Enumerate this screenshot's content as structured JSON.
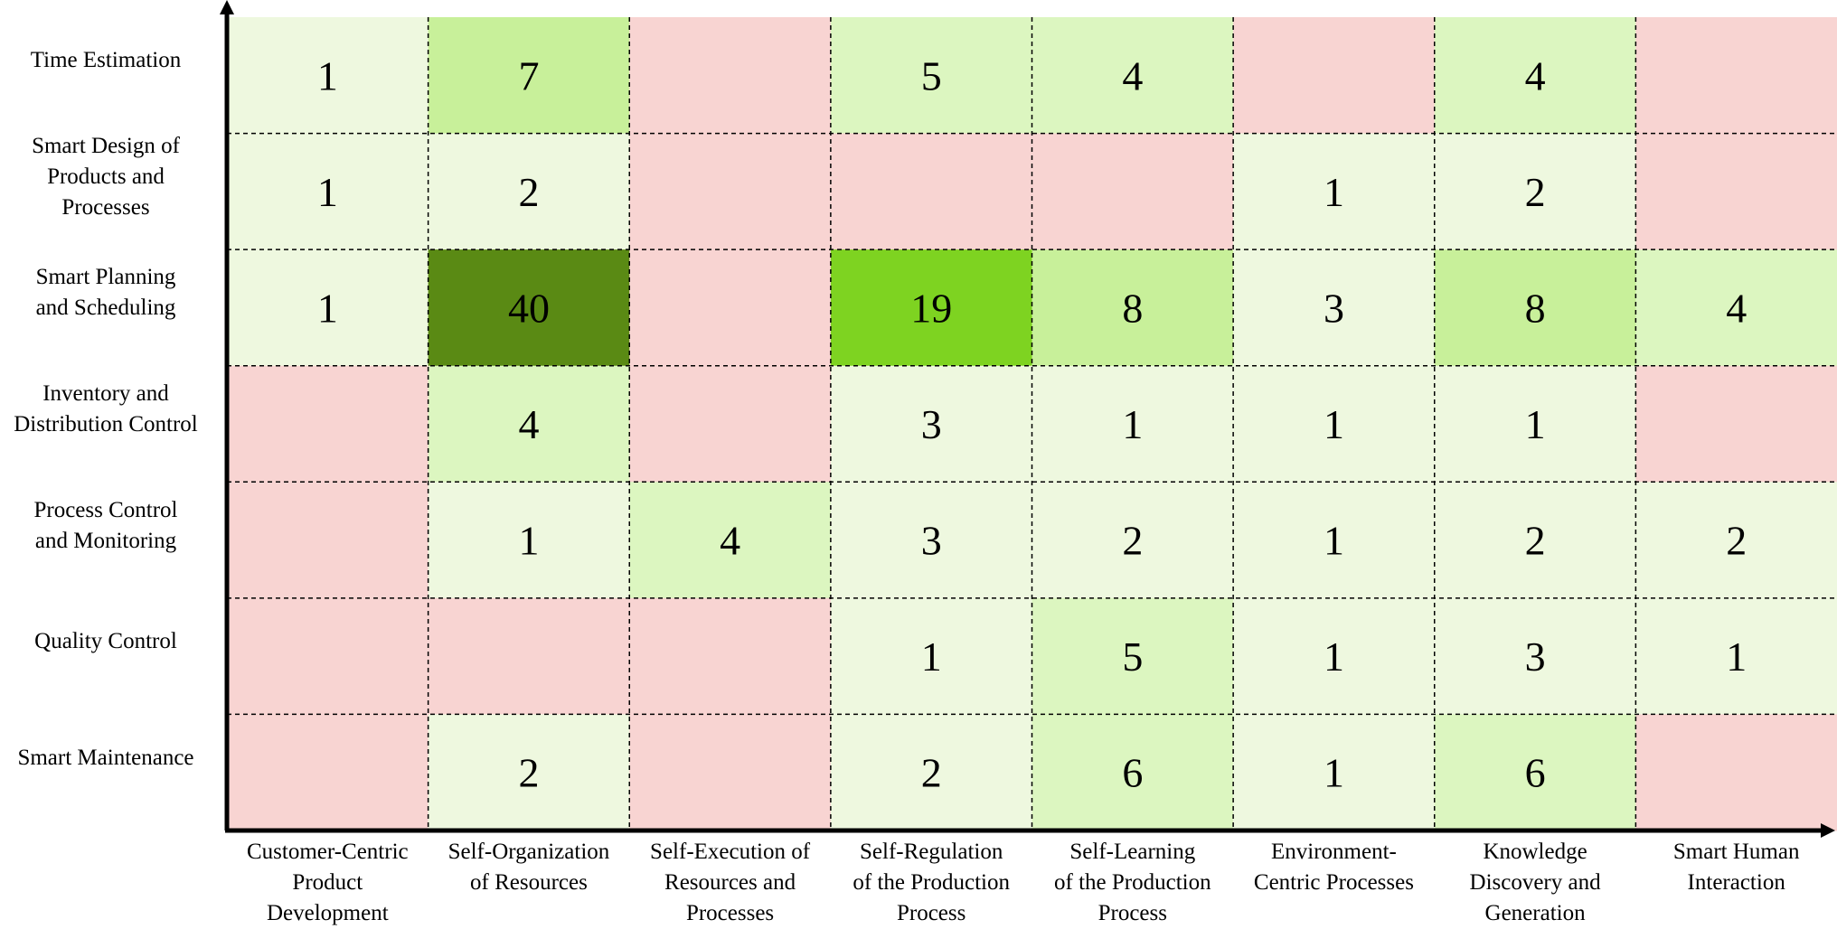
{
  "chart_data": {
    "type": "heatmap",
    "title": "",
    "xlabel": "",
    "ylabel": "",
    "rows": [
      "Time Estimation",
      "Smart Design of Products and Processes",
      "Smart Planning and Scheduling",
      "Inventory and Distribution Control",
      "Process Control and Monitoring",
      "Quality Control",
      "Smart Maintenance"
    ],
    "row_label_lines": [
      [
        "Time Estimation"
      ],
      [
        "Smart Design of",
        "Products and",
        "Processes"
      ],
      [
        "Smart Planning",
        "and Scheduling"
      ],
      [
        "Inventory and",
        "Distribution Control"
      ],
      [
        "Process Control",
        "and Monitoring"
      ],
      [
        "Quality Control"
      ],
      [
        "Smart Maintenance"
      ]
    ],
    "columns": [
      "Customer-Centric Product Development",
      "Self-Organization of Resources",
      "Self-Execution of Resources and Processes",
      "Self-Regulation of the Production Process",
      "Self-Learning of the Production Process",
      "Environment-Centric Processes",
      "Knowledge Discovery and Generation",
      "Smart Human Interaction"
    ],
    "column_label_lines": [
      [
        "Customer-Centric",
        "Product",
        "Development"
      ],
      [
        "Self-Organization",
        "of Resources"
      ],
      [
        "Self-Execution of",
        "Resources and",
        "Processes"
      ],
      [
        "Self-Regulation",
        "of the Production",
        "Process"
      ],
      [
        "Self-Learning",
        "of the Production",
        "Process"
      ],
      [
        "Environment-",
        "Centric Processes"
      ],
      [
        "Knowledge",
        "Discovery and",
        "Generation"
      ],
      [
        "Smart Human",
        "Interaction"
      ]
    ],
    "values": [
      [
        1,
        7,
        null,
        5,
        4,
        null,
        4,
        null
      ],
      [
        1,
        2,
        null,
        null,
        null,
        1,
        2,
        null
      ],
      [
        1,
        40,
        null,
        19,
        8,
        3,
        8,
        4
      ],
      [
        null,
        4,
        null,
        3,
        1,
        1,
        1,
        null
      ],
      [
        null,
        1,
        4,
        3,
        2,
        1,
        2,
        2
      ],
      [
        null,
        null,
        null,
        1,
        5,
        1,
        3,
        1
      ],
      [
        null,
        2,
        null,
        2,
        6,
        1,
        6,
        null
      ]
    ],
    "empty_cell_color": "#f8d4d2",
    "color_scale": [
      {
        "max": 3,
        "color": "#eef8df"
      },
      {
        "max": 6,
        "color": "#dcf6c0"
      },
      {
        "max": 10,
        "color": "#c8f09a"
      },
      {
        "max": 25,
        "color": "#7ed321"
      },
      {
        "max": 100,
        "color": "#5a8a14"
      }
    ],
    "grid": true
  }
}
